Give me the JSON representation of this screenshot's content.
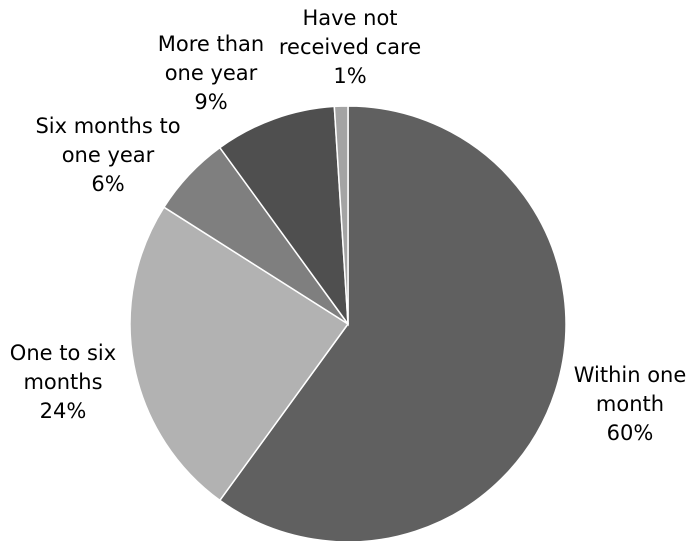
{
  "chart_data": {
    "type": "pie",
    "title": "",
    "slices": [
      {
        "lines": [
          "Within one",
          "month"
        ],
        "pct_label": "60%",
        "value": 60,
        "color": "#606060"
      },
      {
        "lines": [
          "One to six",
          "months"
        ],
        "pct_label": "24%",
        "value": 24,
        "color": "#b2b2b2"
      },
      {
        "lines": [
          "Six months to",
          "one year"
        ],
        "pct_label": "6%",
        "value": 6,
        "color": "#7f7f7f"
      },
      {
        "lines": [
          "More than",
          "one year"
        ],
        "pct_label": "9%",
        "value": 9,
        "color": "#4f4f4f"
      },
      {
        "lines": [
          "Have not",
          "received care"
        ],
        "pct_label": "1%",
        "value": 1,
        "color": "#a4a4a4"
      }
    ],
    "start_angle_deg": 0,
    "direction": "clockwise",
    "slice_border_color": "#ffffff",
    "legend": "none"
  }
}
